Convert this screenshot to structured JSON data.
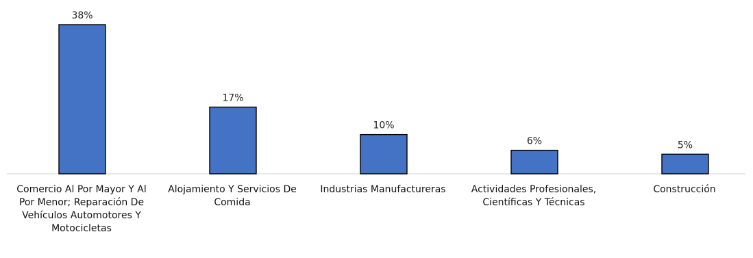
{
  "chart_data": {
    "type": "bar",
    "categories": [
      "Comercio Al Por Mayor Y Al Por Menor; Reparación De Vehículos Automotores Y Motocicletas",
      "Alojamiento Y Servicios De Comida",
      "Industrias Manufactureras",
      "Actividades Profesionales, Científicas Y Técnicas",
      "Construcción"
    ],
    "values": [
      38,
      17,
      10,
      6,
      5
    ],
    "data_labels": [
      "38%",
      "17%",
      "10%",
      "6%",
      "5%"
    ],
    "ylim": [
      0,
      38
    ],
    "grid": false,
    "legend": "none",
    "colors": {
      "bar": "#4472C4",
      "bar_edge": "#000000",
      "baseline": "#D9D9D9"
    }
  }
}
